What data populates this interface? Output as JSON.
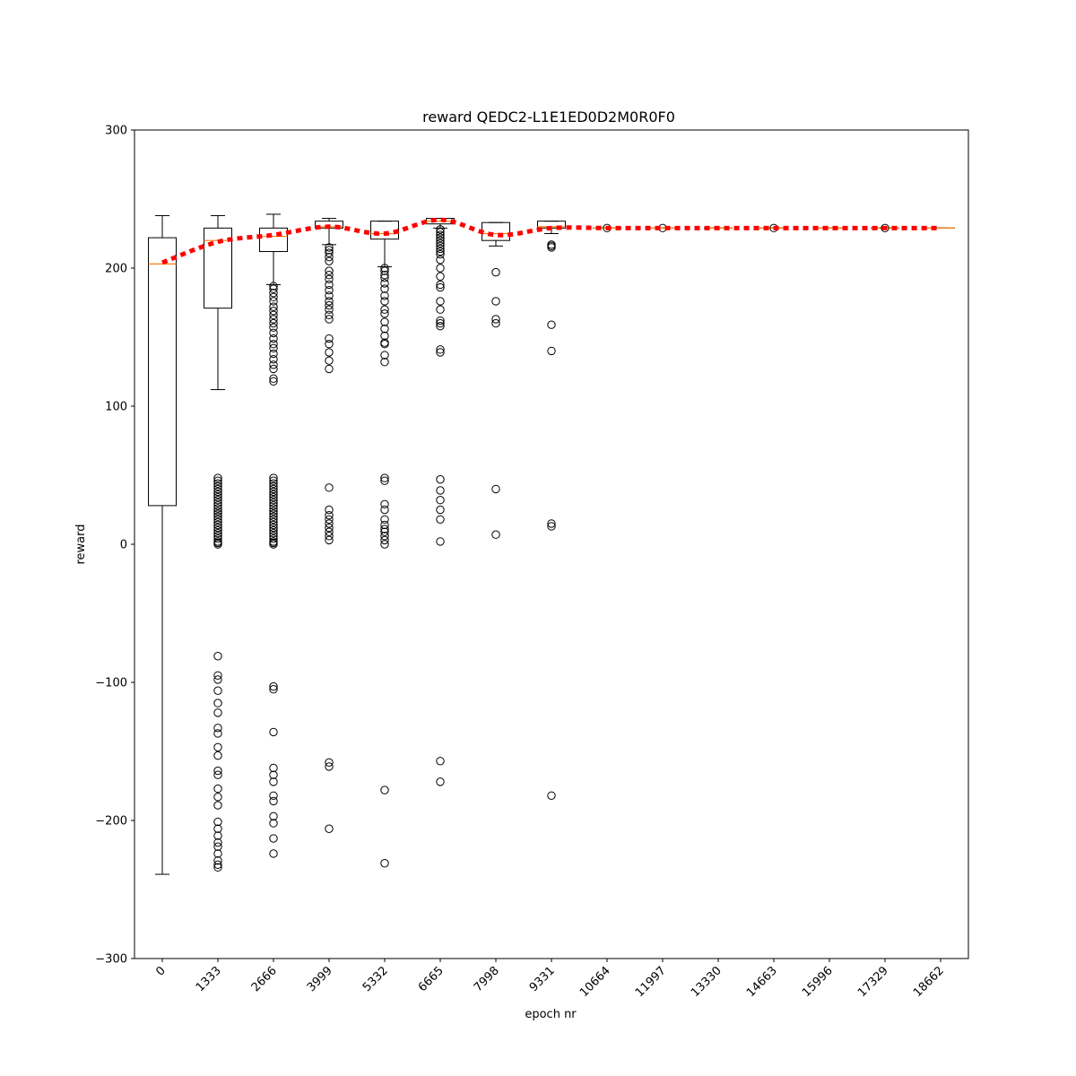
{
  "chart_data": {
    "type": "box",
    "title": "reward QEDC2-L1E1ED0D2M0R0F0",
    "xlabel": "epoch nr",
    "ylabel": "reward",
    "ylim": [
      -300,
      300
    ],
    "yticks": [
      -300,
      -200,
      -100,
      0,
      100,
      200,
      300
    ],
    "ytick_labels": [
      "−300",
      "−200",
      "−100",
      "0",
      "100",
      "200",
      "300"
    ],
    "categories": [
      "0",
      "1333",
      "2666",
      "3999",
      "5332",
      "6665",
      "7998",
      "9331",
      "10664",
      "11997",
      "13330",
      "14663",
      "15996",
      "17329",
      "18662"
    ],
    "boxes": [
      {
        "whislo": -239,
        "q1": 28,
        "med": 203,
        "q3": 222,
        "whishi": 238,
        "fliers": []
      },
      {
        "whislo": 112,
        "q1": 171,
        "med": 220,
        "q3": 229,
        "whishi": 238,
        "fliers": [
          48,
          46,
          44,
          42,
          40,
          38,
          36,
          34,
          32,
          30,
          28,
          26,
          24,
          22,
          20,
          18,
          16,
          14,
          12,
          10,
          8,
          6,
          4,
          2,
          1,
          0,
          -81,
          -95,
          -98,
          -106,
          -115,
          -122,
          -133,
          -137,
          -147,
          -153,
          -164,
          -167,
          -177,
          -183,
          -189,
          -201,
          -206,
          -211,
          -216,
          -219,
          -224,
          -229,
          -232,
          -234
        ]
      },
      {
        "whislo": 188,
        "q1": 212,
        "med": 223,
        "q3": 229,
        "whishi": 239,
        "fliers": [
          187,
          185,
          182,
          179,
          176,
          172,
          169,
          166,
          163,
          160,
          157,
          153,
          149,
          145,
          142,
          138,
          134,
          130,
          127,
          120,
          118,
          48,
          46,
          44,
          42,
          40,
          38,
          36,
          34,
          32,
          30,
          28,
          26,
          24,
          22,
          20,
          18,
          16,
          14,
          12,
          10,
          8,
          6,
          4,
          2,
          1,
          0,
          -103,
          -105,
          -136,
          -162,
          -167,
          -172,
          -182,
          -186,
          -197,
          -202,
          -213,
          -224
        ]
      },
      {
        "whislo": 217,
        "q1": 229,
        "med": 230,
        "q3": 234,
        "whishi": 236,
        "fliers": [
          215,
          213,
          211,
          208,
          205,
          198,
          195,
          192,
          188,
          184,
          180,
          176,
          173,
          170,
          166,
          163,
          149,
          145,
          139,
          133,
          127,
          41,
          25,
          21,
          18,
          15,
          12,
          9,
          6,
          3,
          -158,
          -161,
          -206
        ]
      },
      {
        "whislo": 201,
        "q1": 221,
        "med": 225,
        "q3": 234,
        "whishi": 234,
        "fliers": [
          200,
          198,
          195,
          193,
          189,
          185,
          180,
          176,
          170,
          167,
          161,
          156,
          151,
          146,
          145,
          137,
          132,
          48,
          46,
          29,
          25,
          18,
          14,
          11,
          9,
          6,
          3,
          0,
          -178,
          -231
        ]
      },
      {
        "whislo": 229,
        "q1": 232,
        "med": 234,
        "q3": 236,
        "whishi": 236,
        "fliers": [
          228,
          226,
          224,
          222,
          220,
          218,
          216,
          214,
          212,
          210,
          206,
          200,
          194,
          188,
          186,
          176,
          170,
          162,
          160,
          158,
          141,
          139,
          47,
          39,
          32,
          25,
          18,
          2,
          -157,
          -172
        ]
      },
      {
        "whislo": 216,
        "q1": 220,
        "med": 225,
        "q3": 233,
        "whishi": 233,
        "fliers": [
          197,
          176,
          163,
          160,
          40,
          7
        ]
      },
      {
        "whislo": 225,
        "q1": 229,
        "med": 230,
        "q3": 234,
        "whishi": 234,
        "fliers": [
          217,
          216,
          215,
          159,
          140,
          15,
          13,
          -182
        ]
      },
      {
        "whislo": 229,
        "q1": 229,
        "med": 229,
        "q3": 229,
        "whishi": 229,
        "fliers": [
          229
        ]
      },
      {
        "whislo": 229,
        "q1": 229,
        "med": 229,
        "q3": 229,
        "whishi": 229,
        "fliers": [
          229
        ]
      },
      {
        "whislo": 229,
        "q1": 229,
        "med": 229,
        "q3": 229,
        "whishi": 229,
        "fliers": []
      },
      {
        "whislo": 229,
        "q1": 229,
        "med": 229,
        "q3": 229,
        "whishi": 229,
        "fliers": [
          229
        ]
      },
      {
        "whislo": 229,
        "q1": 229,
        "med": 229,
        "q3": 229,
        "whishi": 229,
        "fliers": []
      },
      {
        "whislo": 229,
        "q1": 229,
        "med": 229,
        "q3": 229,
        "whishi": 229,
        "fliers": [
          229
        ]
      },
      {
        "whislo": 229,
        "q1": 229,
        "med": 229,
        "q3": 229,
        "whishi": 229,
        "fliers": []
      }
    ],
    "mean_line": [
      204,
      219,
      224,
      230,
      225,
      235,
      224,
      229,
      229,
      229,
      229,
      229,
      229,
      229,
      229
    ],
    "colors": {
      "box": "#000000",
      "median": "#ff7f0e",
      "mean_line": "#ff0000",
      "flier": "#000000"
    },
    "grid": false,
    "xtick_rotation": 45
  }
}
